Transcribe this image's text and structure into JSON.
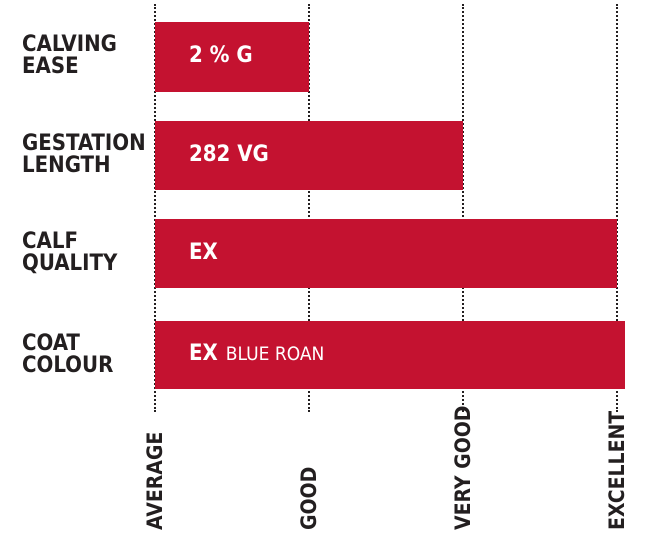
{
  "chart_data": {
    "type": "bar",
    "orientation": "horizontal",
    "categories": [
      "CALVING\nEASE",
      "GESTATION\nLENGTH",
      "CALF\nQUALITY",
      "COAT\nCOLOUR"
    ],
    "values": [
      1.0,
      2.0,
      3.0,
      3.05
    ],
    "bar_labels": [
      {
        "main": "2 % G",
        "sub": ""
      },
      {
        "main": "282 VG",
        "sub": ""
      },
      {
        "main": "EX",
        "sub": ""
      },
      {
        "main": "EX",
        "sub": "BLUE ROAN"
      }
    ],
    "x_tick_labels": [
      "AVERAGE",
      "GOOD",
      "VERY GOOD",
      "EXCELLENT"
    ],
    "x_ticks": [
      0,
      1,
      2,
      3
    ],
    "xlim": [
      0,
      3.05
    ],
    "grid": true,
    "title": "",
    "xlabel": "",
    "ylabel": "",
    "bar_color": "#c41230",
    "text_color": "#231f20"
  }
}
